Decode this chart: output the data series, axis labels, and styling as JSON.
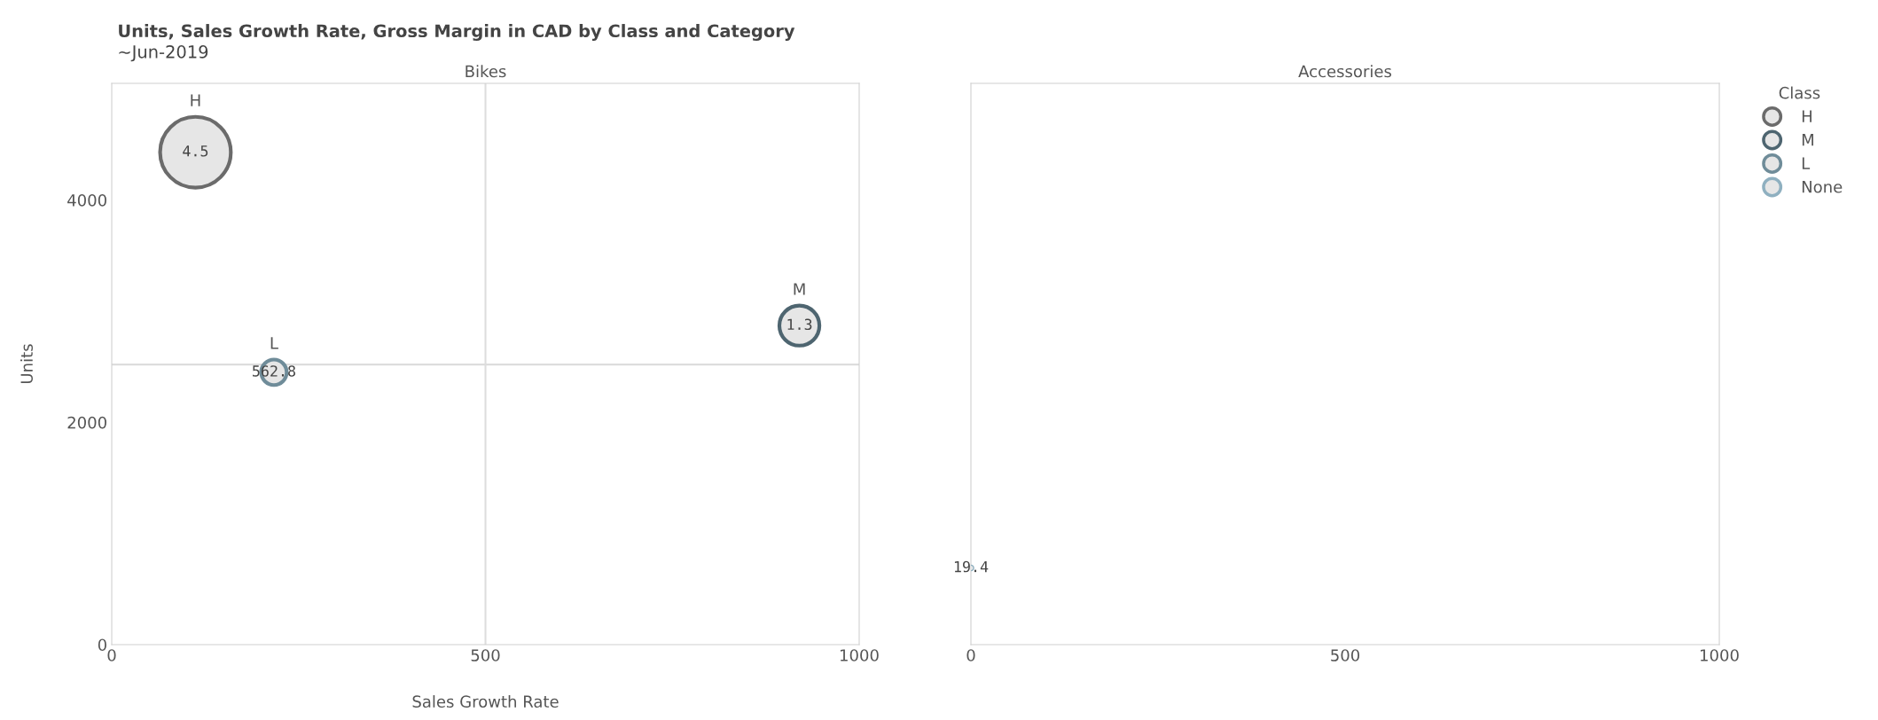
{
  "chart_data": [
    {
      "type": "bubble",
      "title": "Bikes",
      "xlabel": "Sales Growth Rate",
      "ylabel": "Units",
      "xlim": [
        0,
        1000
      ],
      "xticks": [
        0,
        500,
        1000
      ],
      "ylim": [
        0,
        5050
      ],
      "yticks": [
        0,
        2000,
        4000
      ],
      "grid": false,
      "marker": "circle",
      "legend": "right",
      "legend_title": "Class",
      "annotations": [
        "Units, Sales Growth Rate, Gross Margin in CAD by Class and Category",
        "~Jun-2019",
        {
          "text": "4.5",
          "x": 112,
          "y": 4430
        },
        {
          "text": "1.3",
          "x": 920,
          "y": 2870
        },
        {
          "text": "562.8",
          "x": 217,
          "y": 2450
        }
      ],
      "ref_lines": [
        {
          "axis": "x",
          "value": 500,
          "color": "#dddddd"
        },
        {
          "axis": "y",
          "value": 2520,
          "color": "#dddddd"
        }
      ],
      "series": [
        {
          "name": "H",
          "color": "#6b6b6b",
          "x": [
            112
          ],
          "values": [
            4430
          ],
          "sizes": [
            1
          ]
        },
        {
          "name": "M",
          "color": "#4e6570",
          "x": [
            920
          ],
          "values": [
            2870
          ],
          "sizes": [
            0.32
          ]
        },
        {
          "name": "L",
          "color": "#6f8c99",
          "x": [
            217
          ],
          "values": [
            2450
          ],
          "sizes": [
            0.13
          ]
        }
      ]
    },
    {
      "type": "bubble",
      "title": "Accessories",
      "xlim": [
        0,
        1000
      ],
      "xticks": [
        0,
        500,
        1000
      ],
      "ylim": [
        0,
        5050
      ],
      "tick_labels": "x",
      "grid": false,
      "marker": "circle",
      "annotations": [
        {
          "text": "19.4",
          "x": 0,
          "y": 690
        }
      ],
      "series": [
        {
          "name": "None",
          "color": "#8fb0c0",
          "x": [
            0
          ],
          "values": [
            690
          ]
        }
      ]
    }
  ]
}
